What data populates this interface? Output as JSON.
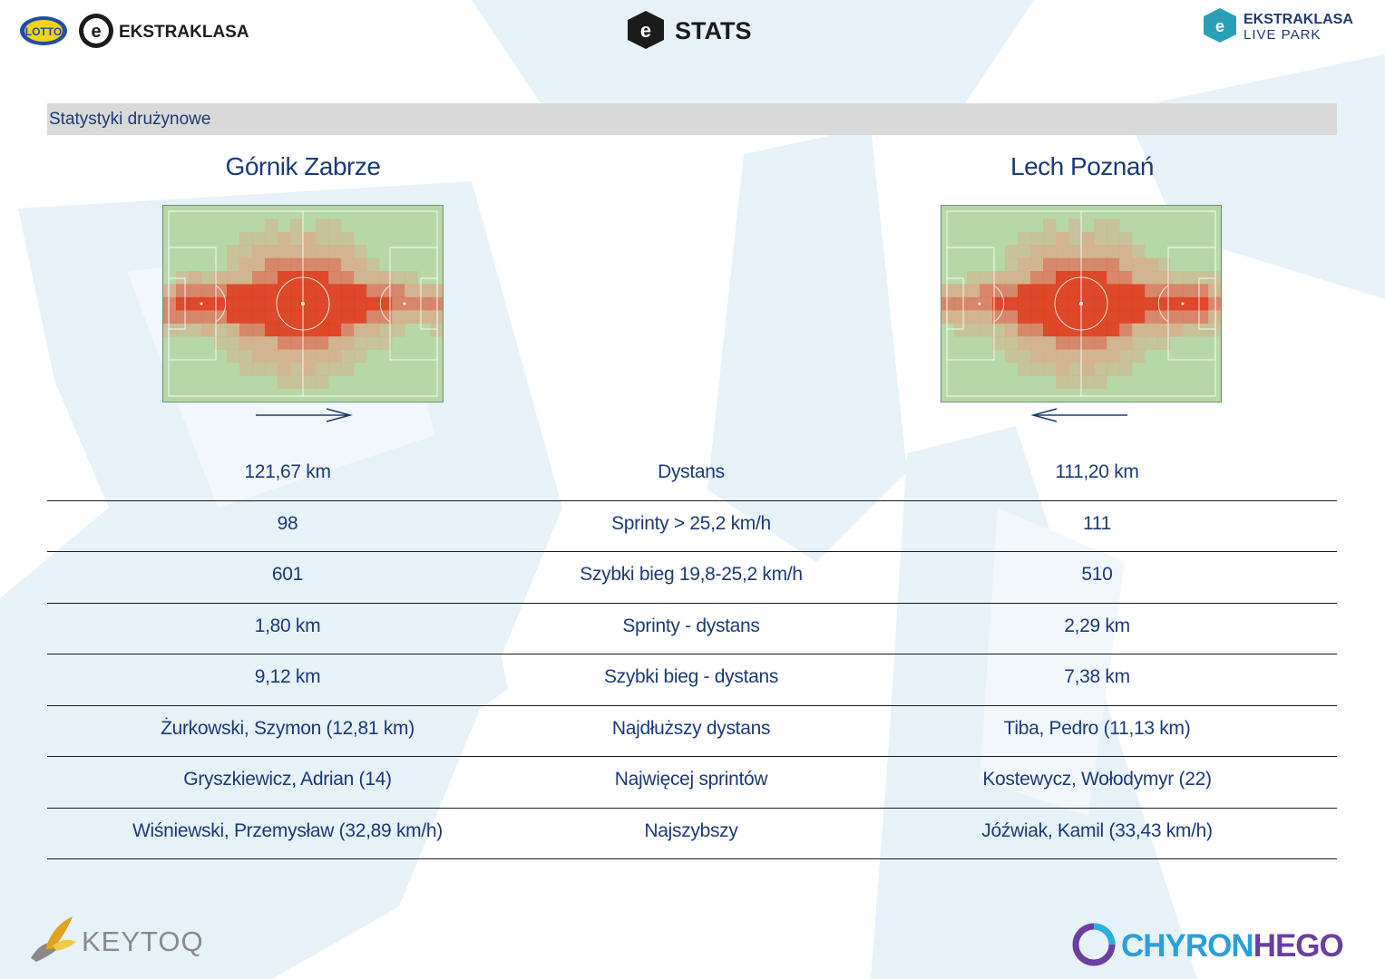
{
  "header": {
    "left_logo_text": "EKSTRAKLASA",
    "left_sponsor_text": "LOTTO",
    "center_logo_text": "STATS",
    "right_logo_line1": "EKSTRAKLASA",
    "right_logo_line2": "LIVE PARK"
  },
  "section_title": "Statystyki drużynowe",
  "teams": {
    "home": {
      "name": "Górnik Zabrze",
      "direction": "right"
    },
    "away": {
      "name": "Lech Poznań",
      "direction": "left"
    }
  },
  "stats": [
    {
      "home": "121,67 km",
      "label": "Dystans",
      "away": "111,20 km"
    },
    {
      "home": "98",
      "label": "Sprinty > 25,2 km/h",
      "away": "111"
    },
    {
      "home": "601",
      "label": "Szybki bieg 19,8-25,2 km/h",
      "away": "510"
    },
    {
      "home": "1,80 km",
      "label": "Sprinty - dystans",
      "away": "2,29 km"
    },
    {
      "home": "9,12 km",
      "label": "Szybki bieg - dystans",
      "away": "7,38 km"
    },
    {
      "home": "Żurkowski, Szymon (12,81 km)",
      "label": "Najdłuższy dystans",
      "away": "Tiba, Pedro (11,13 km)"
    },
    {
      "home": "Gryszkiewicz, Adrian (14)",
      "label": "Najwięcej sprintów",
      "away": "Kostewycz, Wołodymyr (22)"
    },
    {
      "home": "Wiśniewski, Przemysław (32,89 km/h)",
      "label": "Najszybszy",
      "away": "Jóźwiak, Kamil (33,43 km/h)"
    }
  ],
  "footer": {
    "left_logo_text": "KEYTOQ",
    "right_logo_text_a": "CHYRON",
    "right_logo_text_b": "HEGO"
  },
  "colors": {
    "text": "#1b3a78",
    "pitch_green": "#b6d8a8",
    "heat_low": "#d9a98a",
    "heat_mid": "#e0735a",
    "heat_high": "#e23a1c",
    "bg_shape": "#e3f0f8"
  },
  "icons": {
    "arrow_home": "arrow-right-icon",
    "arrow_away": "arrow-left-icon"
  }
}
